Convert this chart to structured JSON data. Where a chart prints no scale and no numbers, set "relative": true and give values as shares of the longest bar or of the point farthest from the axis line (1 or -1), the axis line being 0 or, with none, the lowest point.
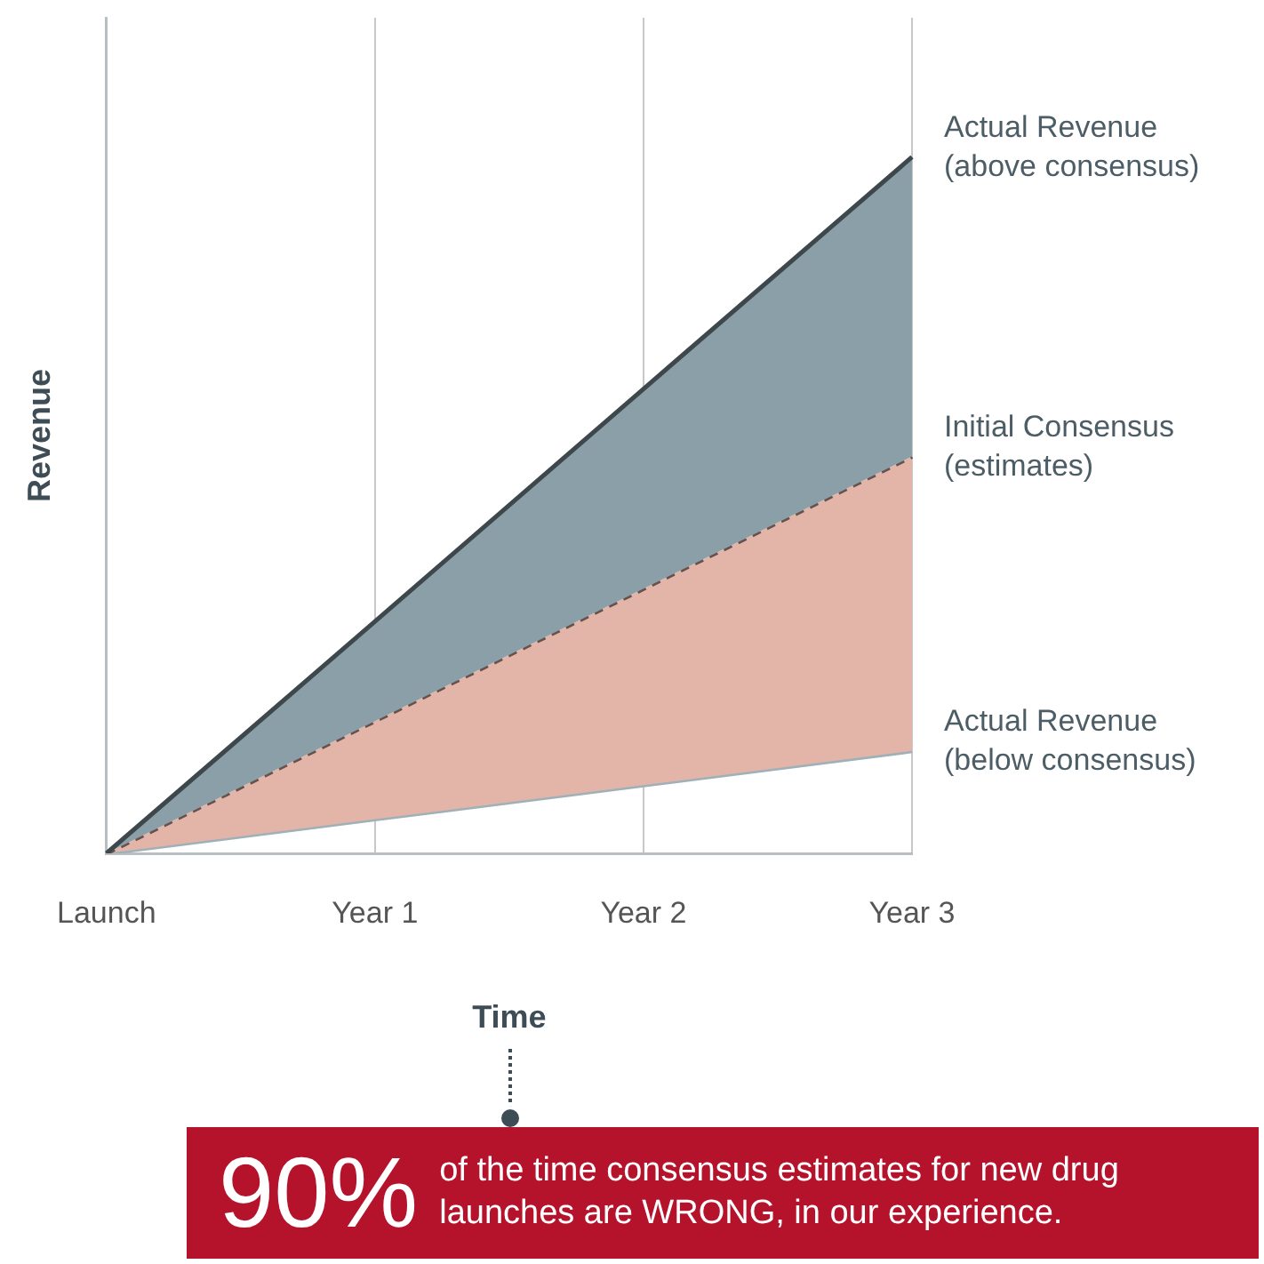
{
  "chart_data": {
    "type": "area",
    "relative": true,
    "xlabel": "Time",
    "ylabel": "Revenue",
    "categories": [
      "Launch",
      "Year 1",
      "Year 2",
      "Year 3"
    ],
    "series": [
      {
        "name": "Actual Revenue (above consensus)",
        "color": "#8a9fa8",
        "values": [
          0,
          0.333,
          0.667,
          1
        ]
      },
      {
        "name": "Initial Consensus (estimates)",
        "color": "#e3b5a9",
        "values": [
          0,
          0.19,
          0.38,
          0.57
        ],
        "line_style": "dashed"
      },
      {
        "name": "Actual Revenue (below consensus)",
        "color": "#9fb0b8",
        "type": "line",
        "values": [
          0,
          0.049,
          0.098,
          0.147
        ]
      }
    ],
    "grid": "x",
    "legend": false,
    "annotations": [
      "90%",
      "of the time consensus estimates for new drug launches are WRONG, in our experience."
    ]
  }
}
